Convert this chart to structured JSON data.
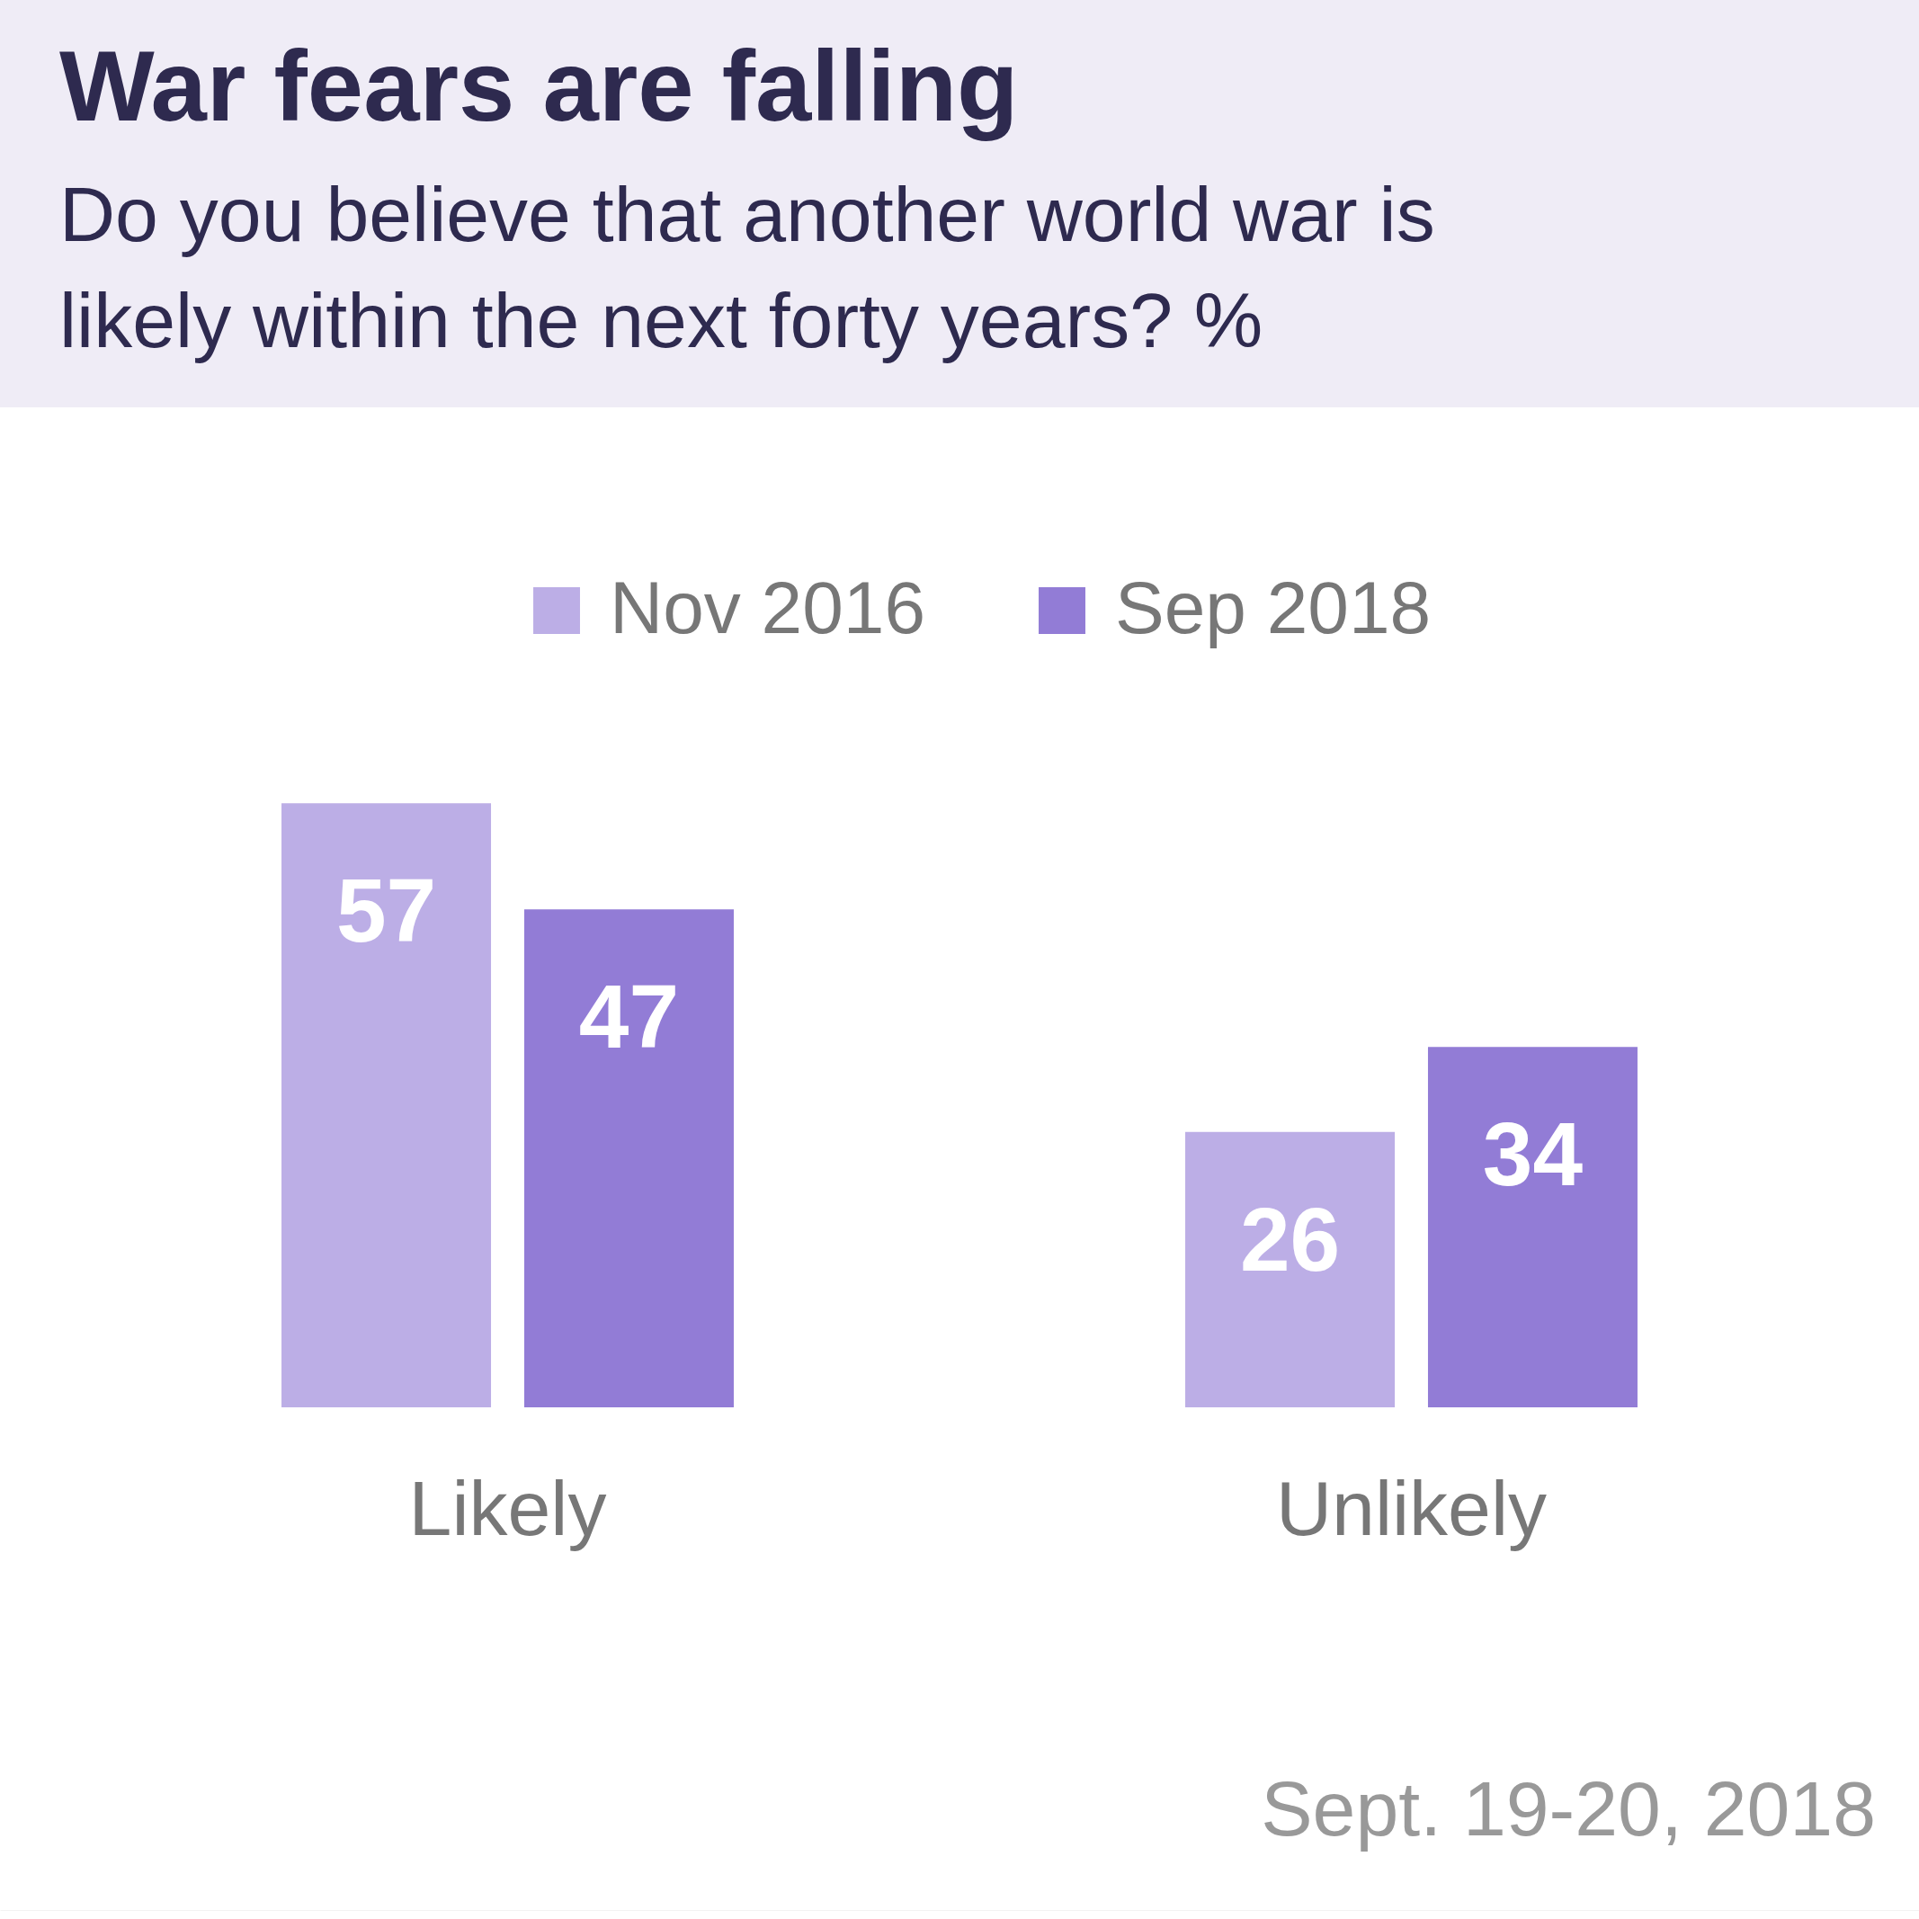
{
  "chart_data": {
    "type": "bar",
    "title": "War fears are falling",
    "subtitle": "Do you believe that another world war is\nlikely within the next forty years? %",
    "categories": [
      "Likely",
      "Unlikely"
    ],
    "series": [
      {
        "name": "Nov 2016",
        "color": "#bcaee6",
        "values": [
          57,
          26
        ]
      },
      {
        "name": "Sep 2018",
        "color": "#927cd6",
        "values": [
          47,
          34
        ]
      }
    ],
    "data_labels": true,
    "legend": "top",
    "grid": false,
    "annotations": [
      "Sept. 19-20, 2018"
    ]
  }
}
